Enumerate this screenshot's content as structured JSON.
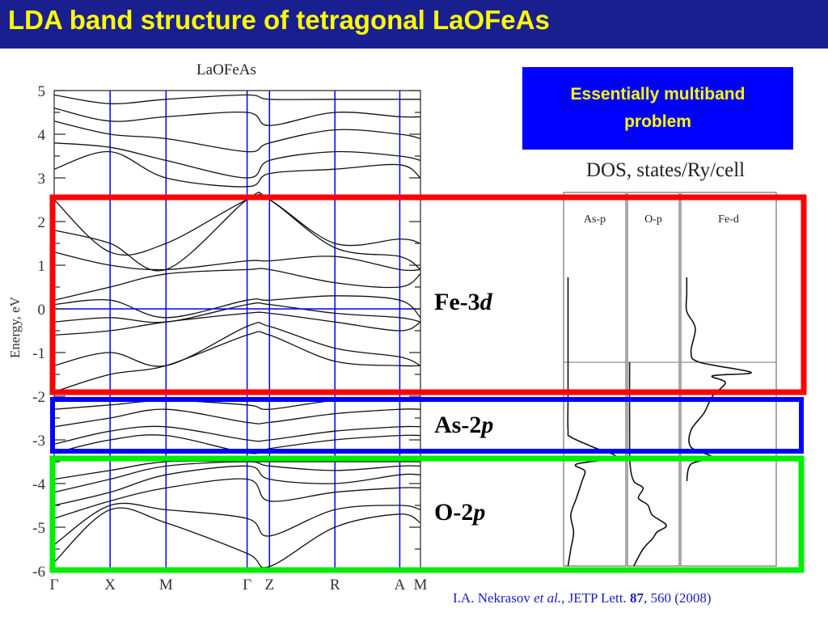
{
  "title": "LDA band structure of tetragonal LaOFeAs",
  "callout": "Essentially multiband problem",
  "citation": {
    "authors": "I.A. Nekrasov",
    "etal": "et al.,",
    "journal": "JETP Lett.",
    "volume": "87",
    "pages": ", 560 (2008)"
  },
  "band_labels": {
    "fe": {
      "text": "Fe-3",
      "orbital": "d"
    },
    "as": {
      "text": "As-2",
      "orbital": "p"
    },
    "o": {
      "text": "O-2",
      "orbital": "p"
    }
  },
  "colors": {
    "title_bg": "#1a1f8f",
    "title_text": "#ffff00",
    "callout_bg": "#0000ff",
    "fe_box": "#ff0000",
    "as_box": "#0000ff",
    "o_box": "#00ee00",
    "kpoint_lines": "#0000ff"
  },
  "chart_data": [
    {
      "type": "line",
      "title": "LaOFeAs",
      "ylabel": "Energy, eV",
      "ylim": [
        -6,
        5
      ],
      "yticks": [
        "5",
        "4",
        "3",
        "2",
        "1",
        "0",
        "-1",
        "-2",
        "-3",
        "-4",
        "-5",
        "-6"
      ],
      "kpoints": [
        "Γ",
        "X",
        "M",
        "Γ",
        "Z",
        "R",
        "A",
        "M"
      ],
      "kpoint_positions": [
        0,
        1,
        2,
        3.45,
        3.85,
        5.02,
        6.18,
        6.55
      ],
      "fermi_level": 0,
      "series": [
        {
          "x": [
            0,
            1,
            2,
            3.45,
            3.85,
            5.02,
            6.18,
            6.55
          ],
          "y": [
            -5.8,
            -4.6,
            -4.9,
            -5.6,
            -5.9,
            -5.0,
            -4.7,
            -4.9
          ]
        },
        {
          "x": [
            0,
            1,
            2,
            3.45,
            3.85,
            5.02,
            6.18,
            6.55
          ],
          "y": [
            -5.4,
            -4.5,
            -4.6,
            -4.8,
            -5.2,
            -4.6,
            -4.5,
            -4.6
          ]
        },
        {
          "x": [
            0,
            1,
            2,
            3.45,
            3.85,
            5.02,
            6.18,
            6.55
          ],
          "y": [
            -4.8,
            -4.4,
            -4.1,
            -3.9,
            -4.4,
            -4.2,
            -4.1,
            -4.1
          ]
        },
        {
          "x": [
            0,
            1,
            2,
            3.45,
            3.85,
            5.02,
            6.18,
            6.55
          ],
          "y": [
            -4.5,
            -4.2,
            -3.8,
            -3.6,
            -3.9,
            -4.0,
            -3.8,
            -3.8
          ]
        },
        {
          "x": [
            0,
            1,
            2,
            3.45,
            3.85,
            5.02,
            6.18,
            6.55
          ],
          "y": [
            -4.2,
            -3.9,
            -3.6,
            -3.5,
            -3.6,
            -3.7,
            -3.6,
            -3.6
          ]
        },
        {
          "x": [
            0,
            1,
            2,
            3.45,
            3.85,
            5.02,
            6.18,
            6.55
          ],
          "y": [
            -3.9,
            -3.7,
            -3.5,
            -3.5,
            -3.5,
            -3.5,
            -3.5,
            -3.5
          ]
        },
        {
          "x": [
            0,
            1,
            2,
            3.45,
            3.85,
            5.02,
            6.18,
            6.55
          ],
          "y": [
            -3.3,
            -3.0,
            -2.9,
            -3.3,
            -3.2,
            -3.0,
            -2.9,
            -2.9
          ]
        },
        {
          "x": [
            0,
            1,
            2,
            3.45,
            3.85,
            5.02,
            6.18,
            6.55
          ],
          "y": [
            -3.1,
            -2.8,
            -2.7,
            -3.0,
            -3.0,
            -2.8,
            -2.7,
            -2.7
          ]
        },
        {
          "x": [
            0,
            1,
            2,
            3.45,
            3.85,
            5.02,
            6.18,
            6.55
          ],
          "y": [
            -2.7,
            -2.5,
            -2.3,
            -2.6,
            -2.6,
            -2.4,
            -2.3,
            -2.3
          ]
        },
        {
          "x": [
            0,
            1,
            2,
            3.45,
            3.85,
            5.02,
            6.18,
            6.55
          ],
          "y": [
            -2.3,
            -2.2,
            -2.1,
            -2.2,
            -2.3,
            -2.1,
            -2.1,
            -2.1
          ]
        },
        {
          "x": [
            0,
            1,
            2,
            3.45,
            3.85,
            5.02,
            6.18,
            6.55
          ],
          "y": [
            -1.9,
            -1.5,
            -1.3,
            -0.6,
            -0.6,
            -1.2,
            -1.3,
            -1.3
          ]
        },
        {
          "x": [
            0,
            1,
            2,
            3.45,
            3.85,
            5.02,
            6.18,
            6.55
          ],
          "y": [
            -1.3,
            -1.0,
            -1.3,
            -0.4,
            -0.4,
            -0.9,
            -1.1,
            -1.3
          ]
        },
        {
          "x": [
            0,
            1,
            2,
            3.45,
            3.85,
            5.02,
            6.18,
            6.55
          ],
          "y": [
            -0.6,
            -0.5,
            -0.3,
            -0.1,
            -0.1,
            -0.3,
            -0.5,
            -0.3
          ]
        },
        {
          "x": [
            0,
            1,
            2,
            3.45,
            3.85,
            5.02,
            6.18,
            6.55
          ],
          "y": [
            -0.3,
            -0.2,
            -0.3,
            0.1,
            0.1,
            -0.1,
            -0.2,
            -0.3
          ]
        },
        {
          "x": [
            0,
            1,
            2,
            3.45,
            3.85,
            5.02,
            6.18,
            6.55
          ],
          "y": [
            0.1,
            0.2,
            -0.2,
            0.2,
            0.2,
            0.3,
            0.2,
            -0.2
          ]
        },
        {
          "x": [
            0,
            1,
            2,
            3.45,
            3.85,
            5.02,
            6.18,
            6.55
          ],
          "y": [
            0.2,
            0.5,
            0.8,
            0.9,
            0.9,
            0.6,
            0.5,
            0.8
          ]
        },
        {
          "x": [
            0,
            1,
            2,
            3.45,
            3.85,
            5.02,
            6.18,
            6.55
          ],
          "y": [
            1.3,
            1.0,
            0.9,
            1.1,
            1.1,
            1.2,
            0.9,
            0.9
          ]
        },
        {
          "x": [
            0,
            1,
            2,
            3.45,
            3.85,
            5.02,
            6.18,
            6.55
          ],
          "y": [
            1.8,
            1.5,
            0.9,
            2.5,
            2.5,
            1.4,
            1.2,
            0.9
          ]
        },
        {
          "x": [
            0,
            1,
            2,
            3.45,
            3.85,
            5.02,
            6.18,
            6.55
          ],
          "y": [
            2.5,
            1.3,
            1.5,
            2.5,
            2.5,
            1.5,
            1.6,
            1.5
          ]
        },
        {
          "x": [
            0,
            1,
            2,
            3.45,
            3.85,
            5.02,
            6.18,
            6.55
          ],
          "y": [
            3.2,
            3.6,
            3.0,
            2.8,
            3.1,
            3.2,
            3.3,
            3.0
          ]
        },
        {
          "x": [
            0,
            1,
            2,
            3.45,
            3.85,
            5.02,
            6.18,
            6.55
          ],
          "y": [
            3.8,
            3.7,
            3.4,
            3.0,
            3.4,
            3.6,
            3.5,
            3.4
          ]
        },
        {
          "x": [
            0,
            1,
            2,
            3.45,
            3.85,
            5.02,
            6.18,
            6.55
          ],
          "y": [
            4.3,
            4.0,
            3.9,
            3.6,
            3.8,
            4.1,
            4.0,
            3.9
          ]
        },
        {
          "x": [
            0,
            1,
            2,
            3.45,
            3.85,
            5.02,
            6.18,
            6.55
          ],
          "y": [
            4.6,
            4.3,
            4.4,
            4.5,
            4.2,
            4.5,
            4.4,
            4.4
          ]
        },
        {
          "x": [
            0,
            1,
            2,
            3.45,
            3.85,
            5.02,
            6.18,
            6.55
          ],
          "y": [
            4.9,
            4.7,
            4.8,
            4.9,
            4.8,
            4.8,
            4.8,
            4.8
          ]
        }
      ]
    },
    {
      "type": "line",
      "title": "DOS, states/Ry/cell",
      "panels": [
        "As-p",
        "O-p",
        "Fe-d"
      ],
      "ylim": [
        -6,
        5
      ],
      "profiles": [
        {
          "name": "As-p",
          "e": [
            -6,
            -5.5,
            -5,
            -4.5,
            -4,
            -3.5,
            -3.2,
            -3,
            -2.8,
            -2.5,
            -2.2,
            -2,
            -1,
            0,
            1,
            2,
            2.5
          ],
          "v": [
            0.05,
            0.1,
            0.15,
            0.1,
            0.2,
            0.3,
            0.35,
            0.2,
            0.9,
            0.5,
            0.1,
            0.05,
            0.05,
            0.05,
            0.05,
            0.05,
            0.05
          ]
        },
        {
          "name": "O-p",
          "e": [
            -6,
            -5.5,
            -5.2,
            -5,
            -4.8,
            -4.5,
            -4.2,
            -4,
            -3.7,
            -3.5,
            -3,
            -2,
            0
          ],
          "v": [
            0.1,
            0.3,
            0.5,
            0.6,
            0.8,
            0.5,
            0.4,
            0.2,
            0.3,
            0.1,
            0.02,
            0.01,
            0.01
          ]
        },
        {
          "name": "Fe-d",
          "e": [
            -3.5,
            -3,
            -2.8,
            -2.5,
            -2,
            -1.5,
            -1,
            -0.6,
            -0.4,
            -0.3,
            0,
            0.3,
            1,
            1.5,
            2,
            2.5
          ],
          "v": [
            0.05,
            0.1,
            0.35,
            0.1,
            0.1,
            0.25,
            0.35,
            0.5,
            0.35,
            0.8,
            0.2,
            0.1,
            0.15,
            0.05,
            0.05,
            0.05
          ]
        }
      ]
    }
  ]
}
